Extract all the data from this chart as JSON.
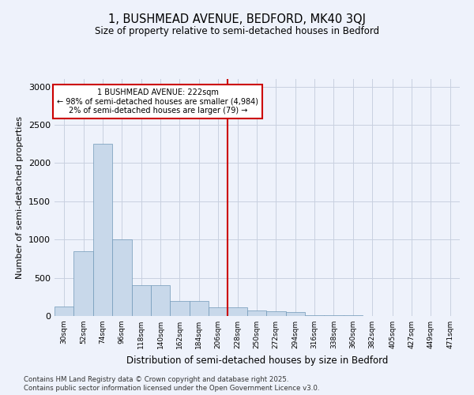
{
  "title_line1": "1, BUSHMEAD AVENUE, BEDFORD, MK40 3QJ",
  "title_line2": "Size of property relative to semi-detached houses in Bedford",
  "xlabel": "Distribution of semi-detached houses by size in Bedford",
  "ylabel": "Number of semi-detached properties",
  "footnote1": "Contains HM Land Registry data © Crown copyright and database right 2025.",
  "footnote2": "Contains public sector information licensed under the Open Government Licence v3.0.",
  "annotation_line1": "1 BUSHMEAD AVENUE: 222sqm",
  "annotation_line2": "← 98% of semi-detached houses are smaller (4,984)",
  "annotation_line3": "2% of semi-detached houses are larger (79) →",
  "property_size": 222,
  "bin_labels": [
    "30sqm",
    "52sqm",
    "74sqm",
    "96sqm",
    "118sqm",
    "140sqm",
    "162sqm",
    "184sqm",
    "206sqm",
    "228sqm",
    "250sqm",
    "272sqm",
    "294sqm",
    "316sqm",
    "338sqm",
    "360sqm",
    "382sqm",
    "405sqm",
    "427sqm",
    "449sqm",
    "471sqm"
  ],
  "bin_starts": [
    30,
    52,
    74,
    96,
    118,
    140,
    162,
    184,
    206,
    228,
    250,
    272,
    294,
    316,
    338,
    360,
    382,
    405,
    427,
    449,
    471
  ],
  "bin_width": 22,
  "bar_values": [
    120,
    850,
    2250,
    1000,
    400,
    400,
    200,
    200,
    110,
    110,
    70,
    60,
    50,
    15,
    10,
    8,
    5,
    5,
    3,
    2,
    1
  ],
  "bar_color": "#c8d8ea",
  "bar_edge_color": "#7098b8",
  "vline_color": "#cc0000",
  "annotation_box_color": "#cc0000",
  "background_color": "#eef2fb",
  "grid_color": "#c8d0e0",
  "ylim": [
    0,
    3100
  ],
  "yticks": [
    0,
    500,
    1000,
    1500,
    2000,
    2500,
    3000
  ]
}
